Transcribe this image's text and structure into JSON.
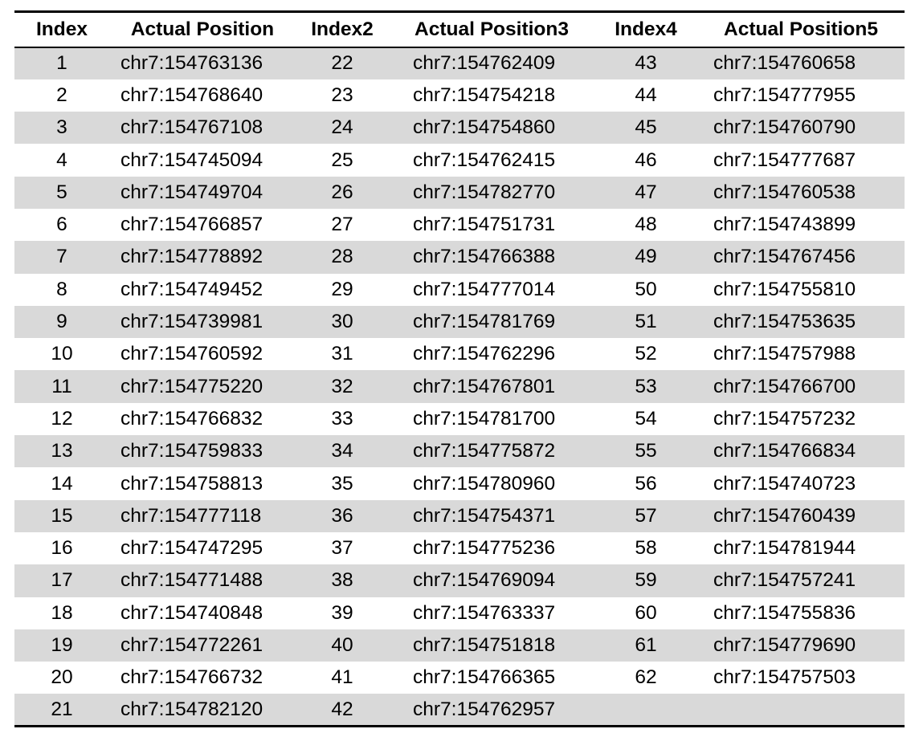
{
  "table": {
    "headers": [
      "Index",
      "Actual Position",
      "Index2",
      "Actual Position3",
      "Index4",
      "Actual Position5"
    ],
    "rows": [
      [
        "1",
        "chr7:154763136",
        "22",
        "chr7:154762409",
        "43",
        "chr7:154760658"
      ],
      [
        "2",
        "chr7:154768640",
        "23",
        "chr7:154754218",
        "44",
        "chr7:154777955"
      ],
      [
        "3",
        "chr7:154767108",
        "24",
        "chr7:154754860",
        "45",
        "chr7:154760790"
      ],
      [
        "4",
        "chr7:154745094",
        "25",
        "chr7:154762415",
        "46",
        "chr7:154777687"
      ],
      [
        "5",
        "chr7:154749704",
        "26",
        "chr7:154782770",
        "47",
        "chr7:154760538"
      ],
      [
        "6",
        "chr7:154766857",
        "27",
        "chr7:154751731",
        "48",
        "chr7:154743899"
      ],
      [
        "7",
        "chr7:154778892",
        "28",
        "chr7:154766388",
        "49",
        "chr7:154767456"
      ],
      [
        "8",
        "chr7:154749452",
        "29",
        "chr7:154777014",
        "50",
        "chr7:154755810"
      ],
      [
        "9",
        "chr7:154739981",
        "30",
        "chr7:154781769",
        "51",
        "chr7:154753635"
      ],
      [
        "10",
        "chr7:154760592",
        "31",
        "chr7:154762296",
        "52",
        "chr7:154757988"
      ],
      [
        "11",
        "chr7:154775220",
        "32",
        "chr7:154767801",
        "53",
        "chr7:154766700"
      ],
      [
        "12",
        "chr7:154766832",
        "33",
        "chr7:154781700",
        "54",
        "chr7:154757232"
      ],
      [
        "13",
        "chr7:154759833",
        "34",
        "chr7:154775872",
        "55",
        "chr7:154766834"
      ],
      [
        "14",
        "chr7:154758813",
        "35",
        "chr7:154780960",
        "56",
        "chr7:154740723"
      ],
      [
        "15",
        "chr7:154777118",
        "36",
        "chr7:154754371",
        "57",
        "chr7:154760439"
      ],
      [
        "16",
        "chr7:154747295",
        "37",
        "chr7:154775236",
        "58",
        "chr7:154781944"
      ],
      [
        "17",
        "chr7:154771488",
        "38",
        "chr7:154769094",
        "59",
        "chr7:154757241"
      ],
      [
        "18",
        "chr7:154740848",
        "39",
        "chr7:154763337",
        "60",
        "chr7:154755836"
      ],
      [
        "19",
        "chr7:154772261",
        "40",
        "chr7:154751818",
        "61",
        "chr7:154779690"
      ],
      [
        "20",
        "chr7:154766732",
        "41",
        "chr7:154766365",
        "62",
        "chr7:154757503"
      ],
      [
        "21",
        "chr7:154782120",
        "42",
        "chr7:154762957",
        "",
        ""
      ]
    ],
    "shaded_row_color": "#d9d9d9"
  }
}
